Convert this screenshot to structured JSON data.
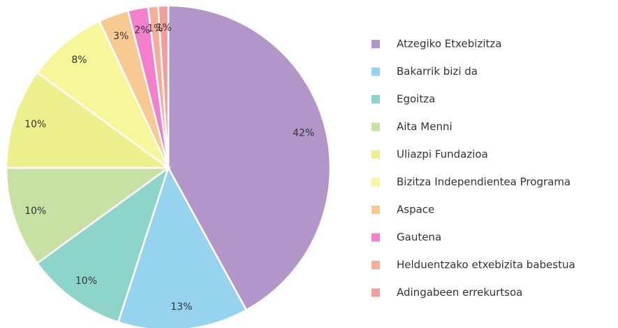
{
  "chart_data": {
    "type": "pie",
    "categories": [
      "Atzegiko Etxebizitza",
      "Bakarrik bizi da",
      "Egoitza",
      "Aita Menni",
      "Uliazpi Fundazioa",
      "Bizitza Independientea Programa",
      "Aspace",
      "Gautena",
      "Helduentzako etxebizita babestua",
      "Adingabeen errekurtsoa"
    ],
    "values": [
      42,
      13,
      10,
      10,
      10,
      8,
      3,
      2,
      1,
      1
    ],
    "value_labels": [
      "42%",
      "13%",
      "10%",
      "10%",
      "10%",
      "8%",
      "3%",
      "2%",
      "1%",
      "1%"
    ],
    "colors": [
      "#b296c9",
      "#96d3ef",
      "#8dd4cb",
      "#c6e1a1",
      "#eef08e",
      "#f8f69b",
      "#f8c990",
      "#f480cd",
      "#f6ae99",
      "#f29e9a"
    ],
    "legend": "right"
  }
}
